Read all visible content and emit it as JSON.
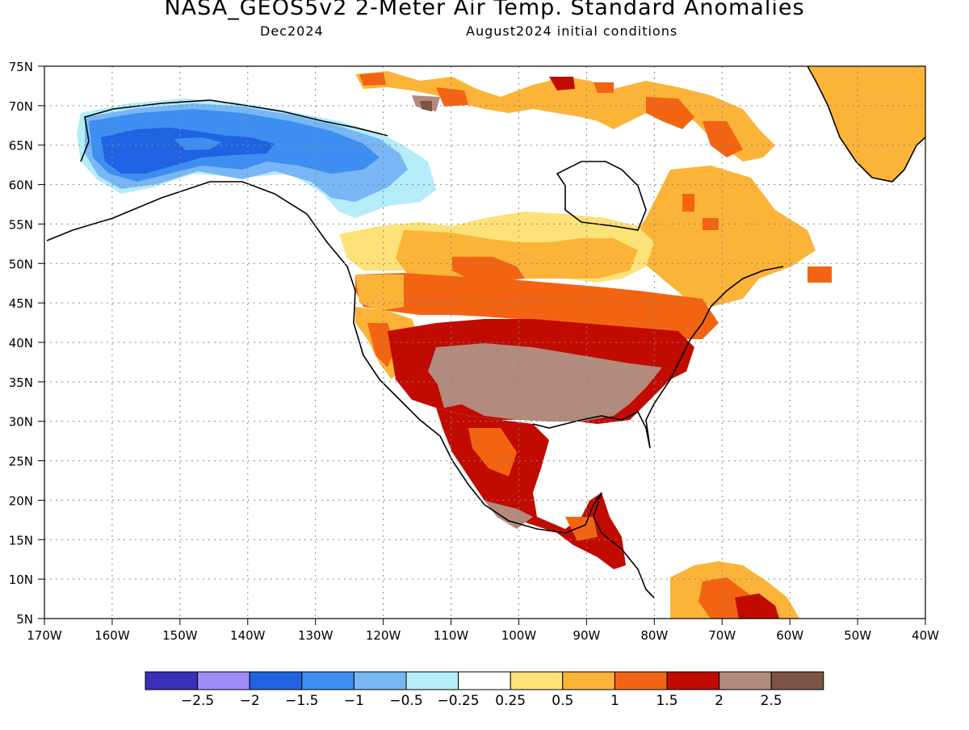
{
  "title": "NASA_GEOS5v2 2-Meter Air Temp. Standard Anomalies",
  "subtitle_left": "Dec2024",
  "subtitle_right": "August2024 initial conditions",
  "axes": {
    "lat_ticks": [
      "75N",
      "70N",
      "65N",
      "60N",
      "55N",
      "50N",
      "45N",
      "40N",
      "35N",
      "30N",
      "25N",
      "20N",
      "15N",
      "10N",
      "5N"
    ],
    "lon_ticks": [
      "170W",
      "160W",
      "150W",
      "140W",
      "130W",
      "120W",
      "110W",
      "100W",
      "90W",
      "80W",
      "70W",
      "60W",
      "50W",
      "40W"
    ],
    "lat_range": [
      5,
      75
    ],
    "lon_range": [
      -170,
      -40
    ],
    "grid": "dotted"
  },
  "legend": {
    "placement": "bottom-center",
    "colors": [
      "#3a2fb8",
      "#9f8cf6",
      "#1f63e3",
      "#3d8ef0",
      "#78b6f5",
      "#b4ecf8",
      "#ffffff",
      "#fde27a",
      "#fbb437",
      "#f36412",
      "#c10a00",
      "#b38a7e",
      "#7b5446"
    ],
    "labels": [
      "-2.5",
      "-2",
      "-1.5",
      "-1",
      "-0.5",
      "-0.25",
      "0.25",
      "0.5",
      "1",
      "1.5",
      "2",
      "2.5"
    ]
  },
  "map_regions": [
    {
      "name": "alaska-strong-cold",
      "anomaly": -1.5,
      "color": "#1f63e3"
    },
    {
      "name": "alaska-yukon-cold",
      "anomaly": -1.0,
      "color": "#3d8ef0"
    },
    {
      "name": "western-canada-cool",
      "anomaly": -0.5,
      "color": "#78b6f5"
    },
    {
      "name": "nw-canada-slightly-cool",
      "anomaly": -0.25,
      "color": "#b4ecf8"
    },
    {
      "name": "canada-prairies-warm",
      "anomaly": 1.0,
      "color": "#fbb437"
    },
    {
      "name": "ontario-slightly-warm",
      "anomaly": 0.5,
      "color": "#fde27a"
    },
    {
      "name": "quebec-labrador-warm",
      "anomaly": 1.0,
      "color": "#fbb437"
    },
    {
      "name": "northern-plains-warm",
      "anomaly": 1.5,
      "color": "#f36412"
    },
    {
      "name": "central-us-very-warm",
      "anomaly": 2.0,
      "color": "#c10a00"
    },
    {
      "name": "southern-us-extreme-warm",
      "anomaly": 2.5,
      "color": "#b38a7e"
    },
    {
      "name": "mexico-very-warm",
      "anomaly": 2.0,
      "color": "#c10a00"
    },
    {
      "name": "arctic-islands-warm",
      "anomaly": 1.5,
      "color": "#f36412"
    },
    {
      "name": "greenland-warm",
      "anomaly": 1.0,
      "color": "#fbb437"
    },
    {
      "name": "northern-south-america-warm",
      "anomaly": 1.0,
      "color": "#fbb437"
    }
  ]
}
